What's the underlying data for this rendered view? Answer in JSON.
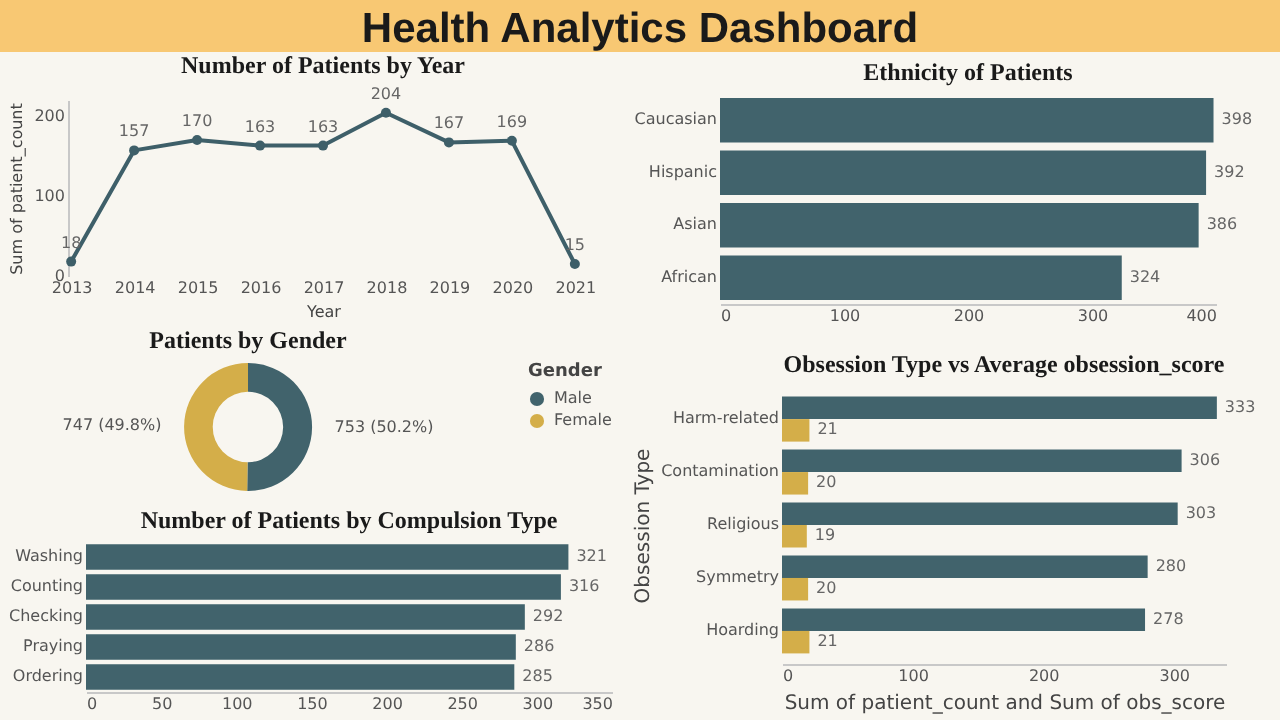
{
  "chart_data": [
    {
      "type": "other",
      "title": "Health Analytics Dashboard"
    },
    {
      "type": "line",
      "title": "Number of Patients by Year",
      "xlabel": "Year",
      "ylabel": "Sum of patient_count",
      "categories": [
        "2013",
        "2014",
        "2015",
        "2016",
        "2017",
        "2018",
        "2019",
        "2020",
        "2021"
      ],
      "values": [
        18,
        157,
        170,
        163,
        163,
        204,
        167,
        169,
        15
      ],
      "color": "#3e5f69",
      "ylim": [
        0,
        220
      ],
      "yticks": [
        0,
        100,
        200
      ],
      "marker": "circle",
      "data_labels": true
    },
    {
      "type": "bar",
      "orientation": "horizontal",
      "title": "Ethnicity of Patients",
      "categories": [
        "Caucasian",
        "Hispanic",
        "Asian",
        "African"
      ],
      "values": [
        398,
        392,
        386,
        324
      ],
      "color": "#41636c",
      "xlim": [
        0,
        400
      ],
      "xticks": [
        0,
        100,
        200,
        300,
        400
      ],
      "data_labels": true
    },
    {
      "type": "donut",
      "title": "Patients by Gender",
      "legend_title": "Gender",
      "legend": "right",
      "categories": [
        "Male",
        "Female"
      ],
      "values": [
        753,
        747
      ],
      "colors": [
        "#41636c",
        "#d4ae49"
      ],
      "value_labels": [
        "753 (50.2%)",
        "747 (49.8%)"
      ]
    },
    {
      "type": "bar",
      "orientation": "horizontal",
      "title": "Number of Patients by Compulsion Type",
      "categories": [
        "Washing",
        "Counting",
        "Checking",
        "Praying",
        "Ordering"
      ],
      "values": [
        321,
        316,
        292,
        286,
        285
      ],
      "color": "#41636c",
      "xlim": [
        0,
        350
      ],
      "xticks": [
        0,
        50,
        100,
        150,
        200,
        250,
        300,
        350
      ],
      "data_labels": true
    },
    {
      "type": "bar",
      "orientation": "horizontal",
      "title": "Obsession Type vs Average obsession_score",
      "xlabel": "Sum of patient_count and Sum of obs_score",
      "ylabel": "Obsession Type",
      "categories": [
        "Harm-related",
        "Contamination",
        "Religious",
        "Symmetry",
        "Hoarding"
      ],
      "xlim": [
        0,
        340
      ],
      "xticks": [
        0,
        100,
        200,
        300
      ],
      "data_labels": true,
      "series": [
        {
          "color": "#41636c",
          "values": [
            333,
            306,
            303,
            280,
            278
          ]
        },
        {
          "color": "#d4ae49",
          "values": [
            21,
            20,
            19,
            20,
            21
          ]
        }
      ]
    }
  ]
}
